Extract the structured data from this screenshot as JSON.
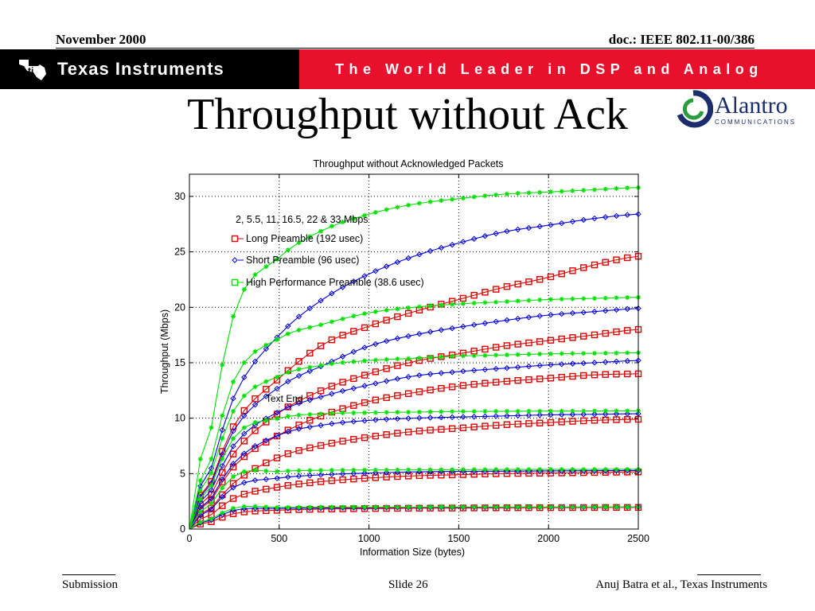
{
  "header": {
    "date": "November 2000",
    "doc": "doc.: IEEE 802.11-00/386",
    "company": "Texas Instruments",
    "tagline": "The World Leader in DSP and Analog"
  },
  "slide": {
    "title": "Throughput without Ack"
  },
  "alantro_logo": {
    "name": "Alantro",
    "sub": "COMMUNICATIONS"
  },
  "footer": {
    "left": "Submission",
    "center": "Slide 26",
    "right": "Anuj Batra et al., Texas Instruments"
  },
  "colors": {
    "red": "#e8112d",
    "long": "#e00000",
    "short": "#0000e0",
    "high": "#00e000"
  },
  "chart_data": {
    "type": "line",
    "title": "Throughput without Acknowledged Packets",
    "xlabel": "Information Size (bytes)",
    "ylabel": "Throughput (Mbps)",
    "xlim": [
      0,
      2500
    ],
    "ylim": [
      0,
      32
    ],
    "xticks": [
      0,
      500,
      1000,
      1500,
      2000,
      2500
    ],
    "yticks": [
      0,
      5,
      10,
      15,
      20,
      25,
      30
    ],
    "grid": true,
    "annotation": "Text End",
    "legend": {
      "placement": "top-left",
      "heading": "2, 5.5, 11, 16.5, 22 & 33 Mbps",
      "entries": [
        {
          "label": "Long Preamble (192 usec)",
          "marker": "square",
          "color": "#e00000"
        },
        {
          "label": "Short Preamble (96 usec)",
          "marker": "diamond",
          "color": "#0000e0"
        },
        {
          "label": "High Performance Preamble (38.6 usec)",
          "marker": "square",
          "color": "#00e000"
        }
      ]
    },
    "x": [
      0,
      250,
      500,
      750,
      1000,
      1250,
      1500,
      1750,
      2000,
      2250,
      2500
    ],
    "series": [
      {
        "group": "long",
        "rate": 33,
        "values": [
          0,
          9.4,
          13.6,
          16.7,
          18.3,
          19.6,
          20.7,
          21.8,
          22.7,
          23.8,
          24.6
        ]
      },
      {
        "group": "long",
        "rate": 22,
        "values": [
          0,
          6.9,
          10.5,
          12.6,
          14.0,
          15.1,
          15.8,
          16.5,
          17.0,
          17.5,
          18.0
        ]
      },
      {
        "group": "long",
        "rate": 16.5,
        "values": [
          0,
          5.7,
          8.5,
          10.3,
          11.5,
          12.3,
          12.9,
          13.3,
          13.6,
          13.9,
          14.0
        ]
      },
      {
        "group": "long",
        "rate": 11,
        "values": [
          0,
          4.2,
          6.5,
          7.6,
          8.3,
          8.8,
          9.1,
          9.4,
          9.6,
          9.8,
          9.9
        ]
      },
      {
        "group": "long",
        "rate": 5.5,
        "values": [
          0,
          2.8,
          3.8,
          4.3,
          4.6,
          4.8,
          4.9,
          5.0,
          5.05,
          5.1,
          5.15
        ]
      },
      {
        "group": "long",
        "rate": 2,
        "values": [
          0,
          1.4,
          1.7,
          1.8,
          1.85,
          1.88,
          1.9,
          1.92,
          1.93,
          1.94,
          1.95
        ]
      },
      {
        "group": "short",
        "rate": 33,
        "values": [
          0,
          12.0,
          17.5,
          20.8,
          23.0,
          24.6,
          25.8,
          26.8,
          27.4,
          28.0,
          28.4
        ]
      },
      {
        "group": "short",
        "rate": 22,
        "values": [
          0,
          9.0,
          12.8,
          14.8,
          16.5,
          17.5,
          18.2,
          18.8,
          19.3,
          19.6,
          19.9
        ]
      },
      {
        "group": "short",
        "rate": 16.5,
        "values": [
          0,
          7.6,
          10.6,
          12.0,
          13.0,
          13.8,
          14.2,
          14.5,
          14.8,
          15.0,
          15.2
        ]
      },
      {
        "group": "short",
        "rate": 11,
        "values": [
          0,
          6.0,
          8.5,
          9.4,
          9.8,
          10.0,
          10.1,
          10.2,
          10.3,
          10.35,
          10.4
        ]
      },
      {
        "group": "short",
        "rate": 5.5,
        "values": [
          0,
          3.8,
          4.6,
          4.9,
          5.05,
          5.15,
          5.2,
          5.22,
          5.24,
          5.26,
          5.28
        ]
      },
      {
        "group": "short",
        "rate": 2,
        "values": [
          0,
          1.7,
          1.85,
          1.9,
          1.93,
          1.95,
          1.96,
          1.97,
          1.98,
          1.98,
          1.99
        ]
      },
      {
        "group": "high",
        "rate": 33,
        "values": [
          0,
          19.5,
          24.5,
          27.0,
          28.4,
          29.3,
          29.8,
          30.2,
          30.4,
          30.6,
          30.8
        ]
      },
      {
        "group": "high",
        "rate": 22,
        "values": [
          0,
          13.5,
          17.2,
          18.5,
          19.5,
          20.0,
          20.3,
          20.5,
          20.7,
          20.8,
          20.9
        ]
      },
      {
        "group": "high",
        "rate": 16.5,
        "values": [
          0,
          10.8,
          13.8,
          14.8,
          15.2,
          15.4,
          15.6,
          15.7,
          15.8,
          15.85,
          15.9
        ]
      },
      {
        "group": "high",
        "rate": 11,
        "values": [
          0,
          8.3,
          10.0,
          10.4,
          10.5,
          10.55,
          10.6,
          10.62,
          10.64,
          10.65,
          10.66
        ]
      },
      {
        "group": "high",
        "rate": 5.5,
        "values": [
          0,
          4.8,
          5.2,
          5.3,
          5.33,
          5.35,
          5.36,
          5.37,
          5.38,
          5.38,
          5.39
        ]
      },
      {
        "group": "high",
        "rate": 2,
        "values": [
          0,
          1.9,
          1.95,
          1.97,
          1.98,
          1.98,
          1.99,
          1.99,
          1.99,
          1.99,
          1.99
        ]
      }
    ]
  }
}
